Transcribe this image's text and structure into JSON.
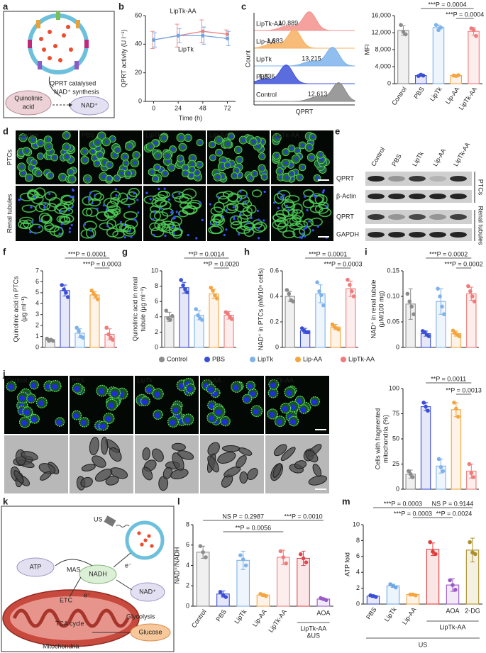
{
  "panel_labels": [
    "a",
    "b",
    "c",
    "d",
    "e",
    "f",
    "g",
    "h",
    "i",
    "j",
    "k",
    "l",
    "m"
  ],
  "diagram_a": {
    "caption": [
      "QPRT catalysed",
      "NAD⁺ synthesis"
    ],
    "substrate": [
      "Quinolinic",
      "acid"
    ],
    "product": "NAD⁺"
  },
  "chart_data": [
    {
      "type": "line",
      "ylabel": [
        "QPRT activity (U l⁻¹)"
      ],
      "xlabel": "Time (h)",
      "x": [
        0,
        24,
        48,
        72
      ],
      "xlim": [
        -8,
        80
      ],
      "xticks": [
        0,
        24,
        48,
        72
      ],
      "ylim": [
        0,
        60
      ],
      "yticks": [
        0,
        20,
        40,
        60
      ],
      "series": [
        {
          "name": "LipTk-AA",
          "color": "#e8807f",
          "values": [
            43,
            46,
            49,
            47
          ],
          "errors": [
            6,
            8,
            8,
            3
          ]
        },
        {
          "name": "LipTk",
          "color": "#6fa3e3",
          "values": [
            43,
            46,
            46,
            44
          ],
          "errors": [
            5,
            5,
            6,
            5
          ]
        }
      ]
    },
    {
      "type": "ridgeline",
      "ylabel": "Count",
      "xlabel": "QPRT",
      "series": [
        {
          "name": "LipTk-AA",
          "label": "10,889",
          "color": "#f3918c"
        },
        {
          "name": "Lip-AA",
          "label": "1,883",
          "color": "#f7b062"
        },
        {
          "name": "LipTk",
          "label": "13,215",
          "color": "#7db3ec"
        },
        {
          "name": "PBS",
          "label": "1,836",
          "color": "#3e52d8"
        },
        {
          "name": "Control",
          "label": "12,613",
          "color": "#8a8a8a"
        }
      ]
    },
    {
      "type": "bar",
      "ylabel": [
        "MFI"
      ],
      "categories": [
        "Control",
        "PBS",
        "LipTk",
        "Lip-AA",
        "LipTk-AA"
      ],
      "colors": [
        "#8c8c8c",
        "#3a4fd6",
        "#7eb2ea",
        "#f5a540",
        "#f07b7b"
      ],
      "values": [
        12500,
        1900,
        13200,
        1900,
        12300
      ],
      "errors": [
        1100,
        150,
        600,
        100,
        900
      ],
      "points": [
        [
          13800,
          12200,
          11600
        ],
        [
          1800,
          2100,
          1900
        ],
        [
          13800,
          12600,
          13200
        ],
        [
          1900,
          1800,
          2000
        ],
        [
          13000,
          12600,
          11200
        ]
      ],
      "ylim": [
        0,
        16000
      ],
      "yticks": [
        0,
        {
          "value": 4000,
          "label": "4,000"
        },
        {
          "value": 8000,
          "label": "8,000"
        },
        {
          "value": 12000,
          "label": "12,000"
        },
        {
          "value": 16000,
          "label": "16,000"
        }
      ],
      "annotations": [
        "***P = 0.0004",
        "***P = 0.0004"
      ]
    },
    {
      "type": "bar",
      "ylabel": [
        "Quinolinic acid in PTCs",
        "(μg ml⁻¹)"
      ],
      "colors": [
        "#8c8c8c",
        "#3a4fd6",
        "#7eb2ea",
        "#f5a540",
        "#f07b7b"
      ],
      "values": [
        0.7,
        5.2,
        1.3,
        4.8,
        1.2
      ],
      "errors": [
        0.1,
        0.5,
        0.4,
        0.3,
        0.5
      ],
      "points": [
        [
          0.8,
          0.6,
          0.7,
          0.6
        ],
        [
          5.7,
          5.3,
          5.0,
          4.6
        ],
        [
          1.8,
          1.5,
          1.0,
          0.9
        ],
        [
          5.2,
          4.9,
          4.7,
          4.4
        ],
        [
          1.8,
          1.2,
          0.9,
          0.7
        ]
      ],
      "ylim": [
        0,
        7
      ],
      "yticks": [
        0,
        1,
        2,
        3,
        4,
        5,
        6,
        7
      ],
      "annotations": [
        "***P = 0.0001",
        "***P = 0.0003"
      ]
    },
    {
      "type": "bar",
      "ylabel": [
        "Quinolinic acid in renal",
        "tubule (μg ml⁻¹)"
      ],
      "colors": [
        "#8c8c8c",
        "#3a4fd6",
        "#7eb2ea",
        "#f5a540",
        "#f07b7b"
      ],
      "values": [
        4.0,
        7.8,
        4.2,
        7.0,
        4.2
      ],
      "errors": [
        0.6,
        0.7,
        0.6,
        0.6,
        0.5
      ],
      "points": [
        [
          4.8,
          3.8,
          3.6,
          4.1
        ],
        [
          8.8,
          8.1,
          7.6,
          7.2
        ],
        [
          5.0,
          4.2,
          3.8,
          3.6
        ],
        [
          7.8,
          7.4,
          6.8,
          6.4
        ],
        [
          4.6,
          4.4,
          4.0,
          3.7
        ]
      ],
      "ylim": [
        0,
        10
      ],
      "yticks": [
        0,
        2,
        4,
        6,
        8,
        10
      ],
      "annotations": [
        "**P = 0.0014",
        "**P = 0.0020"
      ]
    },
    {
      "type": "bar",
      "ylabel": [
        "NAD⁺ in PTCs (nM/10⁶ cells)"
      ],
      "colors": [
        "#8c8c8c",
        "#3a4fd6",
        "#7eb2ea",
        "#f5a540",
        "#f07b7b"
      ],
      "values": [
        0.4,
        0.13,
        0.42,
        0.16,
        0.46
      ],
      "errors": [
        0.04,
        0.02,
        0.07,
        0.02,
        0.06
      ],
      "points": [
        [
          0.45,
          0.42,
          0.37,
          0.36
        ],
        [
          0.15,
          0.13,
          0.12,
          0.12
        ],
        [
          0.51,
          0.44,
          0.41,
          0.33
        ],
        [
          0.18,
          0.16,
          0.15,
          0.14
        ],
        [
          0.53,
          0.49,
          0.44,
          0.4
        ]
      ],
      "ylim": [
        0,
        0.6
      ],
      "yticks": [
        0,
        0.2,
        0.4,
        0.6
      ],
      "annotations": [
        "***P = 0.0001",
        "***P = 0.0003"
      ]
    },
    {
      "type": "bar",
      "ylabel": [
        "NAD⁺ in renal tubule",
        "(μM/100 mg)"
      ],
      "colors": [
        "#8c8c8c",
        "#3a4fd6",
        "#7eb2ea",
        "#f5a540",
        "#f07b7b"
      ],
      "values": [
        0.085,
        0.027,
        0.09,
        0.027,
        0.105
      ],
      "errors": [
        0.03,
        0.005,
        0.025,
        0.005,
        0.013
      ],
      "points": [
        [
          0.105,
          0.09,
          0.08,
          0.065
        ],
        [
          0.032,
          0.03,
          0.025,
          0.022
        ],
        [
          0.115,
          0.1,
          0.08,
          0.065
        ],
        [
          0.033,
          0.028,
          0.025,
          0.022
        ],
        [
          0.12,
          0.11,
          0.1,
          0.09
        ]
      ],
      "ylim": [
        0,
        0.15
      ],
      "yticks": [
        0,
        0.05,
        {
          "value": 0.1,
          "label": "0.10"
        },
        0.15
      ],
      "annotations": [
        "***P = 0.0002",
        "***P = 0.0002"
      ]
    },
    {
      "type": "bar",
      "ylabel": [
        "Cells with fragmented",
        "mitochondria (%)"
      ],
      "colors": [
        "#8c8c8c",
        "#3a4fd6",
        "#7eb2ea",
        "#f5a540",
        "#f07b7b"
      ],
      "values": [
        15,
        82,
        23,
        79,
        18
      ],
      "errors": [
        4,
        4,
        7,
        7,
        7
      ],
      "points": [
        [
          18,
          15,
          12
        ],
        [
          86,
          82,
          78
        ],
        [
          30,
          22,
          18
        ],
        [
          86,
          80,
          72
        ],
        [
          25,
          16,
          12
        ]
      ],
      "ylim": [
        0,
        100
      ],
      "yticks": [
        0,
        25,
        50,
        75,
        100
      ],
      "annotations": [
        "**P = 0.0011",
        "**P = 0.0013"
      ]
    },
    {
      "type": "bar",
      "ylabel": [
        "NAD⁺/NADH"
      ],
      "categories": [
        "Control",
        "PBS",
        "LipTk",
        "Lip-AA",
        "LipTk-AA",
        null,
        "AOA"
      ],
      "colors": [
        "#8c8c8c",
        "#3a4fd6",
        "#7eb2ea",
        "#f5a540",
        "#f07b7b",
        "#e0474c",
        "#9b59c9"
      ],
      "values": [
        5.3,
        1.2,
        4.5,
        1.1,
        4.8,
        4.7,
        0.7
      ],
      "errors": [
        0.6,
        0.3,
        0.9,
        0.15,
        0.7,
        0.7,
        0.1
      ],
      "points": [
        [
          5.9,
          5.3,
          4.8
        ],
        [
          1.4,
          1.1,
          0.9
        ],
        [
          5.0,
          4.6,
          4.0
        ],
        [
          1.2,
          1.1,
          1.0
        ],
        [
          5.4,
          4.8,
          4.2
        ],
        [
          5.1,
          4.7,
          4.3
        ],
        [
          0.8,
          0.7,
          0.6
        ]
      ],
      "ylim": [
        0,
        8
      ],
      "yticks": [
        0,
        2,
        4,
        6,
        8
      ],
      "annotations": [
        "NS P = 0.2987",
        "**P = 0.0056",
        "***P = 0.0010"
      ],
      "group_labels": [
        "LipTk-AA",
        "&US"
      ]
    },
    {
      "type": "bar",
      "ylabel": [
        "ATP fold"
      ],
      "categories": [
        "PBS",
        "LipTk",
        "Lip-AA",
        null,
        "AOA",
        "2-DG"
      ],
      "colors": [
        "#3a4fd6",
        "#6fa8e8",
        "#f5a540",
        "#e03a3a",
        "#9b59c9",
        "#a88f2a"
      ],
      "values": [
        1.0,
        2.3,
        1.2,
        6.9,
        2.4,
        6.8
      ],
      "errors": [
        0.15,
        0.2,
        0.1,
        0.8,
        0.8,
        1.5
      ],
      "points": [
        [
          1.1,
          1.0,
          0.9
        ],
        [
          2.5,
          2.3,
          2.1
        ],
        [
          1.2,
          1.2,
          1.1
        ],
        [
          7.8,
          6.6,
          6.3
        ],
        [
          3.0,
          2.4,
          1.8
        ],
        [
          7.8,
          6.5,
          6.3
        ]
      ],
      "ylim": [
        0,
        10
      ],
      "yticks": [
        0,
        2,
        4,
        6,
        8,
        10
      ],
      "annotations": [
        "***P = 0.0003",
        "***P = 0.0003",
        "NS P = 0.9144",
        "**P = 0.0024"
      ],
      "group_labels": [
        "LipTk-AA"
      ],
      "footer": "US"
    }
  ],
  "legend_fghi": [
    {
      "name": "Control",
      "color": "#8c8c8c"
    },
    {
      "name": "PBS",
      "color": "#3a4fd6"
    },
    {
      "name": "LipTk",
      "color": "#7eb2ea"
    },
    {
      "name": "Lip-AA",
      "color": "#f5a540"
    },
    {
      "name": "LipTk-AA",
      "color": "#f07b7b"
    }
  ],
  "micrographs_d": {
    "columns": [
      "Control",
      "PBS",
      "LipTk",
      "Lip-AA",
      "LipTk-AA"
    ],
    "rows": [
      "PTCs",
      "Renal tubules"
    ]
  },
  "blot_e": {
    "lanes": [
      "Control",
      "PBS",
      "LipTk",
      "Lip-AA",
      "LipTk-AA"
    ],
    "rows": [
      "QPRT",
      "β-Actin",
      "QPRT",
      "GAPDH"
    ],
    "groups": [
      "PTCs",
      "Renal tubules"
    ]
  },
  "micrographs_j": {
    "columns": [
      "Control",
      "PBS",
      "LipTk",
      "Lip-AA",
      "LipTk-AA"
    ]
  },
  "diagram_k": {
    "us": "US",
    "atp": "ATP",
    "mas": "MAS",
    "nadh": "NADH",
    "e1": "e⁻",
    "e2": "e⁻",
    "etc": "ETC",
    "nad": "NAD⁺",
    "glycolysis": "Glycolysis",
    "tca": "TCA cycle",
    "glucose": "Glucose",
    "mito": "Mitochondria"
  }
}
